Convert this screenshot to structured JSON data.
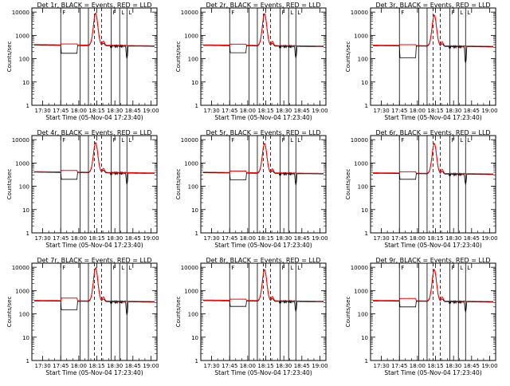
{
  "chart_data": {
    "type": "line",
    "layout": "3x3 grid",
    "shared": {
      "title_suffix": "BLACK = Events, RED = LLD",
      "xlabel": "Start Time (05-Nov-04 17:23:40)",
      "ylabel": "Counts/sec",
      "x_tick_labels": [
        "17:30",
        "17:45",
        "18:00",
        "18:15",
        "18:30",
        "18:45",
        "19:00"
      ],
      "x_ticks_min": [
        7,
        22,
        37,
        52,
        67,
        82,
        97
      ],
      "xlim_min": [
        -2,
        102
      ],
      "y_log": true,
      "ylim": [
        1,
        15000
      ],
      "y_tick_labels": [
        "1",
        "10",
        "100",
        "1000",
        "10000"
      ],
      "y_ticks": [
        1,
        10,
        100,
        1000,
        10000
      ],
      "vertical_solid_lines_min": [
        22,
        38,
        45,
        64,
        71,
        77
      ],
      "vertical_dashed_lines_min": [
        50,
        56
      ],
      "colors": {
        "events": "#000000",
        "lld": "#ff0000",
        "axes": "#000000"
      },
      "annotation_letters": [
        "F",
        "F",
        "L",
        "L"
      ]
    },
    "panels": [
      {
        "title": "Det 1r",
        "peak": 9000,
        "base_black": 360,
        "base_red": 380,
        "dip_black": 170,
        "dip_red": 430
      },
      {
        "title": "Det 2r",
        "peak": 8500,
        "base_black": 350,
        "base_red": 370,
        "dip_black": 180,
        "dip_red": 420
      },
      {
        "title": "Det 3r",
        "peak": 7500,
        "base_black": 340,
        "base_red": 360,
        "dip_black": 110,
        "dip_red": 400
      },
      {
        "title": "Det 4r",
        "peak": 7500,
        "base_black": 380,
        "base_red": 400,
        "dip_black": 200,
        "dip_red": 480
      },
      {
        "title": "Det 5r",
        "peak": 7000,
        "base_black": 360,
        "base_red": 380,
        "dip_black": 190,
        "dip_red": 450
      },
      {
        "title": "Det 6r",
        "peak": 7000,
        "base_black": 340,
        "base_red": 360,
        "dip_black": 200,
        "dip_red": 420
      },
      {
        "title": "Det 7r",
        "peak": 9500,
        "base_black": 340,
        "base_red": 360,
        "dip_black": 150,
        "dip_red": 480
      },
      {
        "title": "Det 8r",
        "peak": 8000,
        "base_black": 350,
        "base_red": 370,
        "dip_black": 210,
        "dip_red": 430
      },
      {
        "title": "Det 9r",
        "peak": 8000,
        "base_black": 340,
        "base_red": 360,
        "dip_black": 200,
        "dip_red": 460
      }
    ]
  }
}
